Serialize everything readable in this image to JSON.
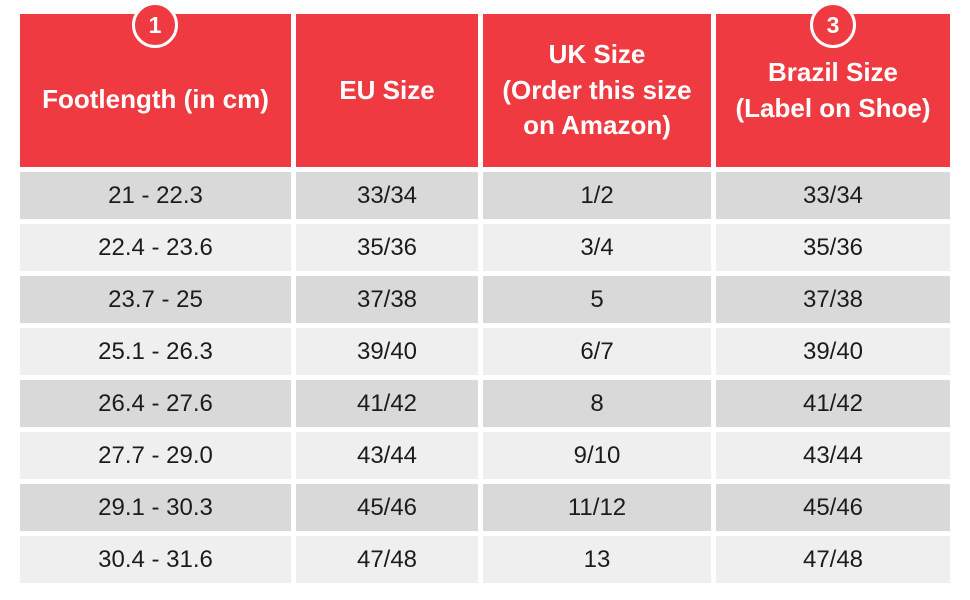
{
  "chart_data": {
    "type": "table",
    "columns": [
      "Footlength (in cm)",
      "EU Size",
      "UK Size (Order this size on Amazon)",
      "Brazil Size (Label on Shoe)"
    ],
    "columns_display": [
      "Footlength (in cm)",
      "EU Size",
      "UK Size\n(Order this size\non Amazon)",
      "Brazil Size\n(Label on Shoe)"
    ],
    "rows": [
      [
        "21 - 22.3",
        "33/34",
        "1/2",
        "33/34"
      ],
      [
        "22.4 - 23.6",
        "35/36",
        "3/4",
        "35/36"
      ],
      [
        "23.7 - 25",
        "37/38",
        "5",
        "37/38"
      ],
      [
        "25.1 - 26.3",
        "39/40",
        "6/7",
        "39/40"
      ],
      [
        "26.4 - 27.6",
        "41/42",
        "8",
        "41/42"
      ],
      [
        "27.7 - 29.0",
        "43/44",
        "9/10",
        "43/44"
      ],
      [
        "29.1 - 30.3",
        "45/46",
        "11/12",
        "45/46"
      ],
      [
        "30.4 - 31.6",
        "47/48",
        "13",
        "47/48"
      ]
    ],
    "step_badges": [
      {
        "label": "1",
        "column": "Footlength (in cm)"
      },
      {
        "label": "3",
        "column": "Brazil Size (Label on Shoe)"
      }
    ],
    "layout": {
      "grid": false,
      "header_position": "top",
      "row_striping": "odd-dark"
    }
  },
  "colors": {
    "header_bg": "#ee3a40",
    "header_text": "#ffffff",
    "row_odd_bg": "#d9d9d9",
    "row_even_bg": "#efefef",
    "cell_text": "#1c1c1c",
    "separator": "#ffffff"
  }
}
